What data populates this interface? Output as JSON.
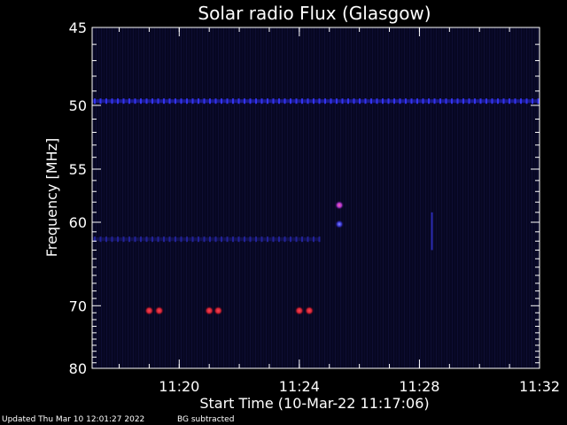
{
  "chart_data": {
    "type": "heatmap",
    "title": "Solar radio Flux (Glasgow)",
    "xlabel": "Start Time (10-Mar-22 11:17:06)",
    "ylabel": "Frequency [MHz]",
    "xlim": [
      "11:17:06",
      "11:32:00"
    ],
    "ylim": [
      80,
      45
    ],
    "y_scale": "reciprocal",
    "x_ticks": [
      "11:20",
      "11:24",
      "11:28",
      "11:32"
    ],
    "y_ticks": [
      45,
      50,
      55,
      60,
      70,
      80
    ],
    "colors": {
      "background": "#000000",
      "plot_area": "#0a0a2c",
      "axes": "#ffffff",
      "interference": "#3333ee",
      "burst_core": "#ff3344",
      "burst_mid": "#cc44cc"
    },
    "features": [
      {
        "kind": "horizontal_band",
        "frequency": 49.7,
        "time_start": "11:17:06",
        "time_end": "11:32:00",
        "intensity": "medium"
      },
      {
        "kind": "horizontal_band",
        "frequency": 61.8,
        "time_start": "11:17:06",
        "time_end": "11:24:40",
        "intensity": "low"
      },
      {
        "kind": "spot",
        "time": "11:19:00",
        "frequency": 70.7,
        "intensity": "high"
      },
      {
        "kind": "spot",
        "time": "11:19:20",
        "frequency": 70.7,
        "intensity": "high"
      },
      {
        "kind": "spot",
        "time": "11:21:00",
        "frequency": 70.7,
        "intensity": "high"
      },
      {
        "kind": "spot",
        "time": "11:21:18",
        "frequency": 70.7,
        "intensity": "high"
      },
      {
        "kind": "spot",
        "time": "11:24:00",
        "frequency": 70.7,
        "intensity": "high"
      },
      {
        "kind": "spot",
        "time": "11:24:20",
        "frequency": 70.7,
        "intensity": "high"
      },
      {
        "kind": "spot",
        "time": "11:25:20",
        "frequency": 58.3,
        "intensity": "high"
      },
      {
        "kind": "spot",
        "time": "11:25:20",
        "frequency": 60.2,
        "intensity": "medium"
      },
      {
        "kind": "vertical_streak",
        "time": "11:28:25",
        "frequency_start": 59,
        "frequency_end": 63,
        "intensity": "low"
      }
    ]
  },
  "footer": {
    "updated": "Updated Thu Mar 10 12:01:27 2022",
    "bg_note": "BG subtracted"
  }
}
